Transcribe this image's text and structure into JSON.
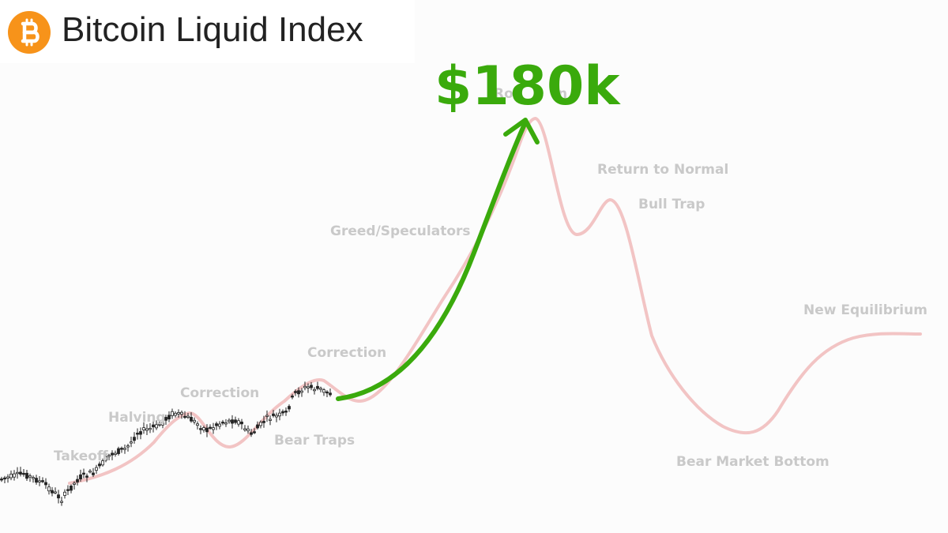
{
  "header": {
    "title": "Bitcoin Liquid Index",
    "logo_icon": "bitcoin-icon",
    "logo_color": "#f7931a"
  },
  "chart_data": {
    "type": "line",
    "title": "",
    "xlabel": "",
    "ylabel": "",
    "grid": false,
    "legend": "none",
    "target_label": "$180k",
    "target_color": "#3aaa0c",
    "cycle_color": "#f2c4c4",
    "candle_color": "#222222",
    "phases": [
      "Takeoff",
      "Halving",
      "Correction",
      "Bear Traps",
      "Correction",
      "Greed/Speculators",
      "Return to Normal",
      "Bull Trap",
      "Bear Market Bottom",
      "New Equilibrium"
    ],
    "hidden_phase_fragment": "Ro",
    "hidden_phase_fragment_end": "n"
  }
}
